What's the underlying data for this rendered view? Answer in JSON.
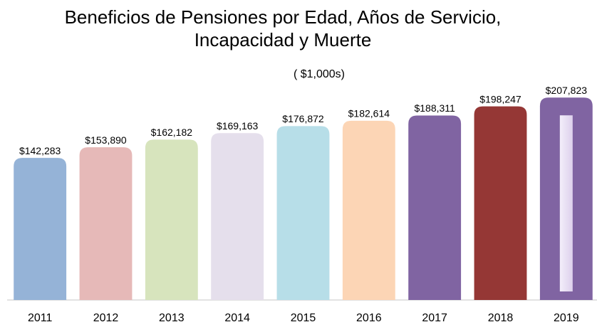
{
  "chart_data": {
    "type": "bar",
    "title": "Beneficios de Pensiones por Edad, Años de Servicio, Incapacidad y Muerte",
    "subtitle": "( $1,000s)",
    "categories": [
      "2011",
      "2012",
      "2013",
      "2014",
      "2015",
      "2016",
      "2017",
      "2018",
      "2019"
    ],
    "values": [
      142283,
      153890,
      162182,
      169163,
      176872,
      182614,
      188311,
      198247,
      207823
    ],
    "value_labels": [
      "$142,283",
      "$153,890",
      "$162,182",
      "$169,163",
      "$176,872",
      "$182,614",
      "$188,311",
      "$198,247",
      "$207,823"
    ],
    "colors": [
      "#95b3d7",
      "#e6b9b8",
      "#d7e4bd",
      "#e5dfec",
      "#b7dee8",
      "#fcd5b5",
      "#8064a2",
      "#953735",
      "#8064a2"
    ],
    "ylim": [
      -12000,
      208000
    ]
  }
}
